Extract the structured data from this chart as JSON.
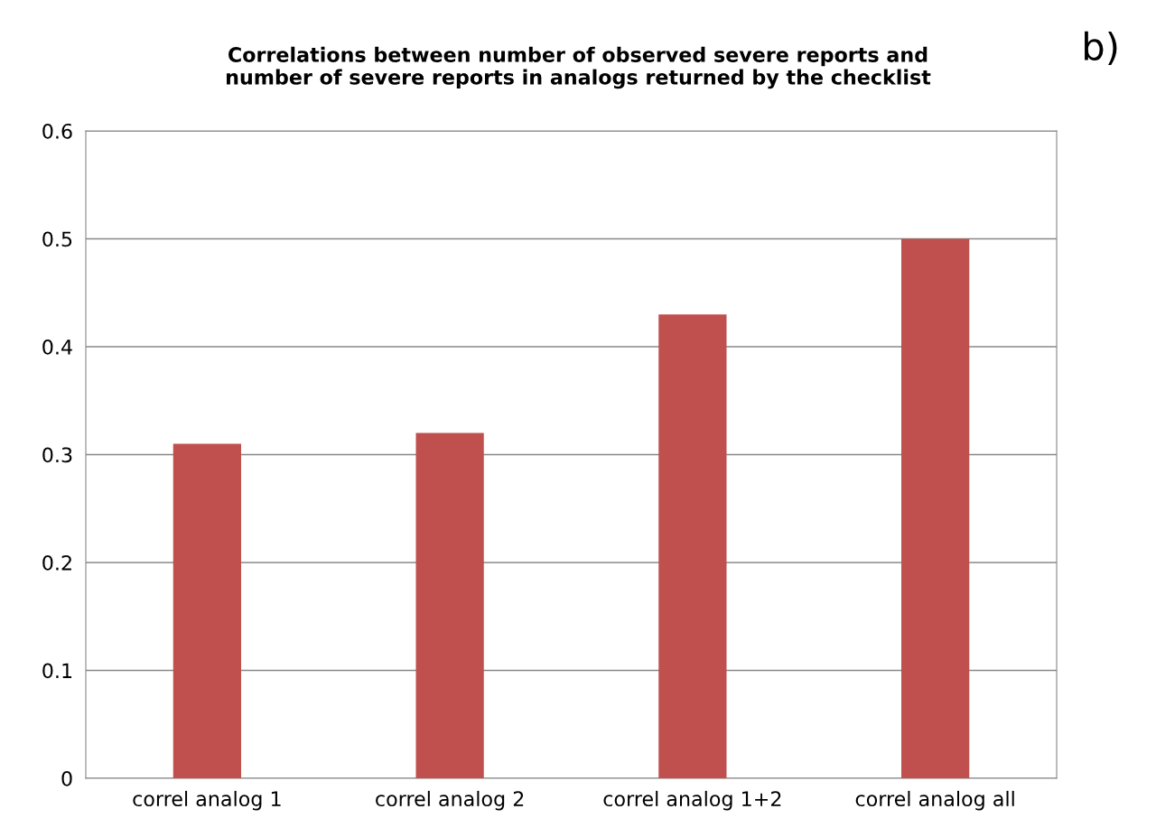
{
  "chart_data": {
    "type": "bar",
    "title": "Correlations between number of observed severe reports and\nnumber of severe reports in analogs returned by the checklist",
    "categories": [
      "correl analog 1",
      "correl analog 2",
      "correl analog 1+2",
      "correl analog all"
    ],
    "values": [
      0.31,
      0.32,
      0.43,
      0.5
    ],
    "color": "#c0504d",
    "ylim": [
      0,
      0.6
    ],
    "yticks": [
      0,
      0.1,
      0.2,
      0.3,
      0.4,
      0.5,
      0.6
    ],
    "grid": "y",
    "legend": false,
    "annotations": [
      "b)"
    ]
  }
}
